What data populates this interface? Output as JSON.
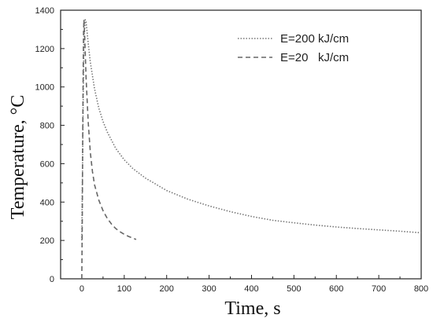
{
  "chart_data": {
    "type": "line",
    "title": "",
    "xlabel": "Time, s",
    "ylabel": "Temperature, °C",
    "xlim": [
      -50,
      800
    ],
    "ylim": [
      0,
      1400
    ],
    "x_ticks": [
      "0",
      "100",
      "200",
      "300",
      "400",
      "500",
      "600",
      "700",
      "800"
    ],
    "y_ticks": [
      "0",
      "200",
      "400",
      "600",
      "800",
      "1000",
      "1200",
      "1400"
    ],
    "legend_position": "top-right",
    "grid": false,
    "series": [
      {
        "name": "E=200 kJ/cm",
        "style": "dotted",
        "color": "#777777",
        "x": [
          0,
          3,
          5,
          8,
          10,
          15,
          20,
          30,
          40,
          50,
          60,
          80,
          100,
          120,
          150,
          200,
          250,
          300,
          350,
          400,
          450,
          500,
          550,
          600,
          650,
          700,
          750,
          800
        ],
        "y": [
          200,
          900,
          1250,
          1350,
          1340,
          1230,
          1130,
          990,
          890,
          820,
          765,
          680,
          620,
          575,
          525,
          460,
          415,
          380,
          350,
          325,
          305,
          292,
          280,
          270,
          262,
          255,
          248,
          240
        ]
      },
      {
        "name": "E=20   kJ/cm",
        "style": "dashed",
        "color": "#666666",
        "x": [
          0,
          1,
          2,
          3,
          4,
          5,
          7,
          10,
          15,
          20,
          25,
          30,
          40,
          50,
          60,
          70,
          80,
          90,
          100,
          110,
          120,
          128
        ],
        "y": [
          0,
          300,
          700,
          1050,
          1280,
          1350,
          1250,
          1050,
          820,
          660,
          560,
          490,
          410,
          355,
          315,
          285,
          262,
          245,
          232,
          221,
          212,
          205
        ]
      }
    ]
  }
}
